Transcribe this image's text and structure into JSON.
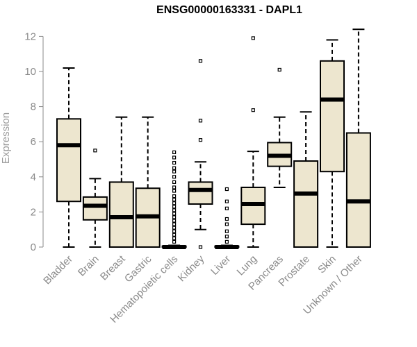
{
  "chart_data": {
    "type": "boxplot",
    "title": "ENSG00000163331 - DAPL1",
    "ylabel": "Expression",
    "xlabel": "",
    "ylim": [
      0,
      12.4
    ],
    "yticks": [
      0,
      2,
      4,
      6,
      8,
      10,
      12
    ],
    "grid": false,
    "legend": "none",
    "colors": {
      "box_fill": "#ede6cf",
      "stroke": "#000000",
      "axis": "#8a8a8a"
    },
    "categories": [
      "Bladder",
      "Brain",
      "Breast",
      "Gastric",
      "Hematopoietic cells",
      "Kidney",
      "Liver",
      "Lung",
      "Pancreas",
      "Prostate",
      "Skin",
      "Unknown / Other"
    ],
    "boxes": [
      {
        "category": "Bladder",
        "whisker_low": 0,
        "q1": 2.6,
        "median": 5.8,
        "q3": 7.3,
        "whisker_high": 10.2,
        "outliers": []
      },
      {
        "category": "Brain",
        "whisker_low": 0,
        "q1": 1.55,
        "median": 2.35,
        "q3": 2.85,
        "whisker_high": 3.9,
        "outliers": [
          5.5
        ]
      },
      {
        "category": "Breast",
        "whisker_low": 0,
        "q1": 0,
        "median": 1.7,
        "q3": 3.7,
        "whisker_high": 7.4,
        "outliers": []
      },
      {
        "category": "Gastric",
        "whisker_low": 0,
        "q1": 0,
        "median": 1.75,
        "q3": 3.35,
        "whisker_high": 7.4,
        "outliers": []
      },
      {
        "category": "Hematopoietic cells",
        "whisker_low": 0,
        "q1": 0,
        "median": 0,
        "q3": 0.05,
        "whisker_high": 0.1,
        "outliers": [
          0.3,
          0.5,
          0.7,
          0.9,
          1.1,
          1.3,
          1.5,
          1.7,
          1.9,
          2.1,
          2.3,
          2.5,
          2.7,
          2.9,
          3.2,
          3.4,
          3.7,
          4.0,
          4.3,
          4.5,
          4.8,
          5.1,
          5.4
        ]
      },
      {
        "category": "Kidney",
        "whisker_low": 1.0,
        "q1": 2.45,
        "median": 3.25,
        "q3": 3.7,
        "whisker_high": 4.85,
        "outliers": [
          0,
          6.1,
          7.2,
          10.6
        ]
      },
      {
        "category": "Liver",
        "whisker_low": 0,
        "q1": 0,
        "median": 0,
        "q3": 0.05,
        "whisker_high": 0.1,
        "outliers": [
          0.3,
          0.6,
          0.9,
          1.3,
          1.6,
          2.2,
          2.6,
          3.3
        ]
      },
      {
        "category": "Lung",
        "whisker_low": 0,
        "q1": 1.3,
        "median": 2.45,
        "q3": 3.4,
        "whisker_high": 5.45,
        "outliers": [
          7.8,
          11.9
        ]
      },
      {
        "category": "Pancreas",
        "whisker_low": 3.4,
        "q1": 4.6,
        "median": 5.2,
        "q3": 5.95,
        "whisker_high": 7.4,
        "outliers": [
          10.1
        ]
      },
      {
        "category": "Prostate",
        "whisker_low": 0,
        "q1": 0,
        "median": 3.05,
        "q3": 4.9,
        "whisker_high": 7.7,
        "outliers": []
      },
      {
        "category": "Skin",
        "whisker_low": 0,
        "q1": 4.3,
        "median": 8.4,
        "q3": 10.6,
        "whisker_high": 11.8,
        "outliers": []
      },
      {
        "category": "Unknown / Other",
        "whisker_low": 0,
        "q1": 0,
        "median": 2.6,
        "q3": 6.5,
        "whisker_high": 12.4,
        "outliers": []
      }
    ]
  }
}
